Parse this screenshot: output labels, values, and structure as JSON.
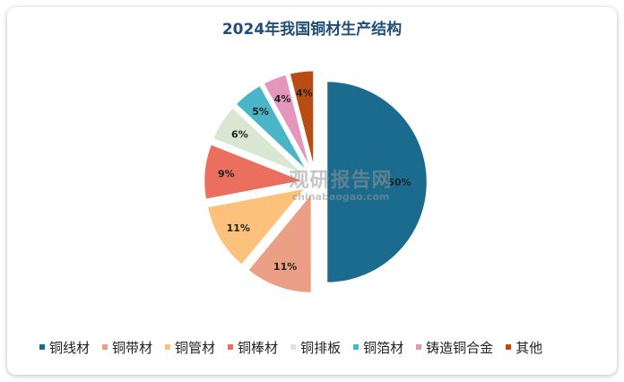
{
  "chart_data": {
    "type": "pie",
    "title": "2024年我国铜材生产结构",
    "slices": [
      {
        "label": "铜线材",
        "value": 50,
        "display": "50%",
        "color": "#1a6b8e"
      },
      {
        "label": "铜带材",
        "value": 11,
        "display": "11%",
        "color": "#eba085"
      },
      {
        "label": "铜管材",
        "value": 11,
        "display": "11%",
        "color": "#fcc27b"
      },
      {
        "label": "铜棒材",
        "value": 9,
        "display": "9%",
        "color": "#ea6f5e"
      },
      {
        "label": "铜排板",
        "value": 6,
        "display": "6%",
        "color": "#d9e7d2"
      },
      {
        "label": "铜箔材",
        "value": 5,
        "display": "5%",
        "color": "#48b6c8"
      },
      {
        "label": "铸造铜合金",
        "value": 4,
        "display": "4%",
        "color": "#e496bd"
      },
      {
        "label": "其他",
        "value": 4,
        "display": "4%",
        "color": "#b84c15"
      }
    ],
    "legend_position": "bottom"
  },
  "watermark": {
    "main": "观研报告网",
    "sub": "chinabaogao.com"
  }
}
